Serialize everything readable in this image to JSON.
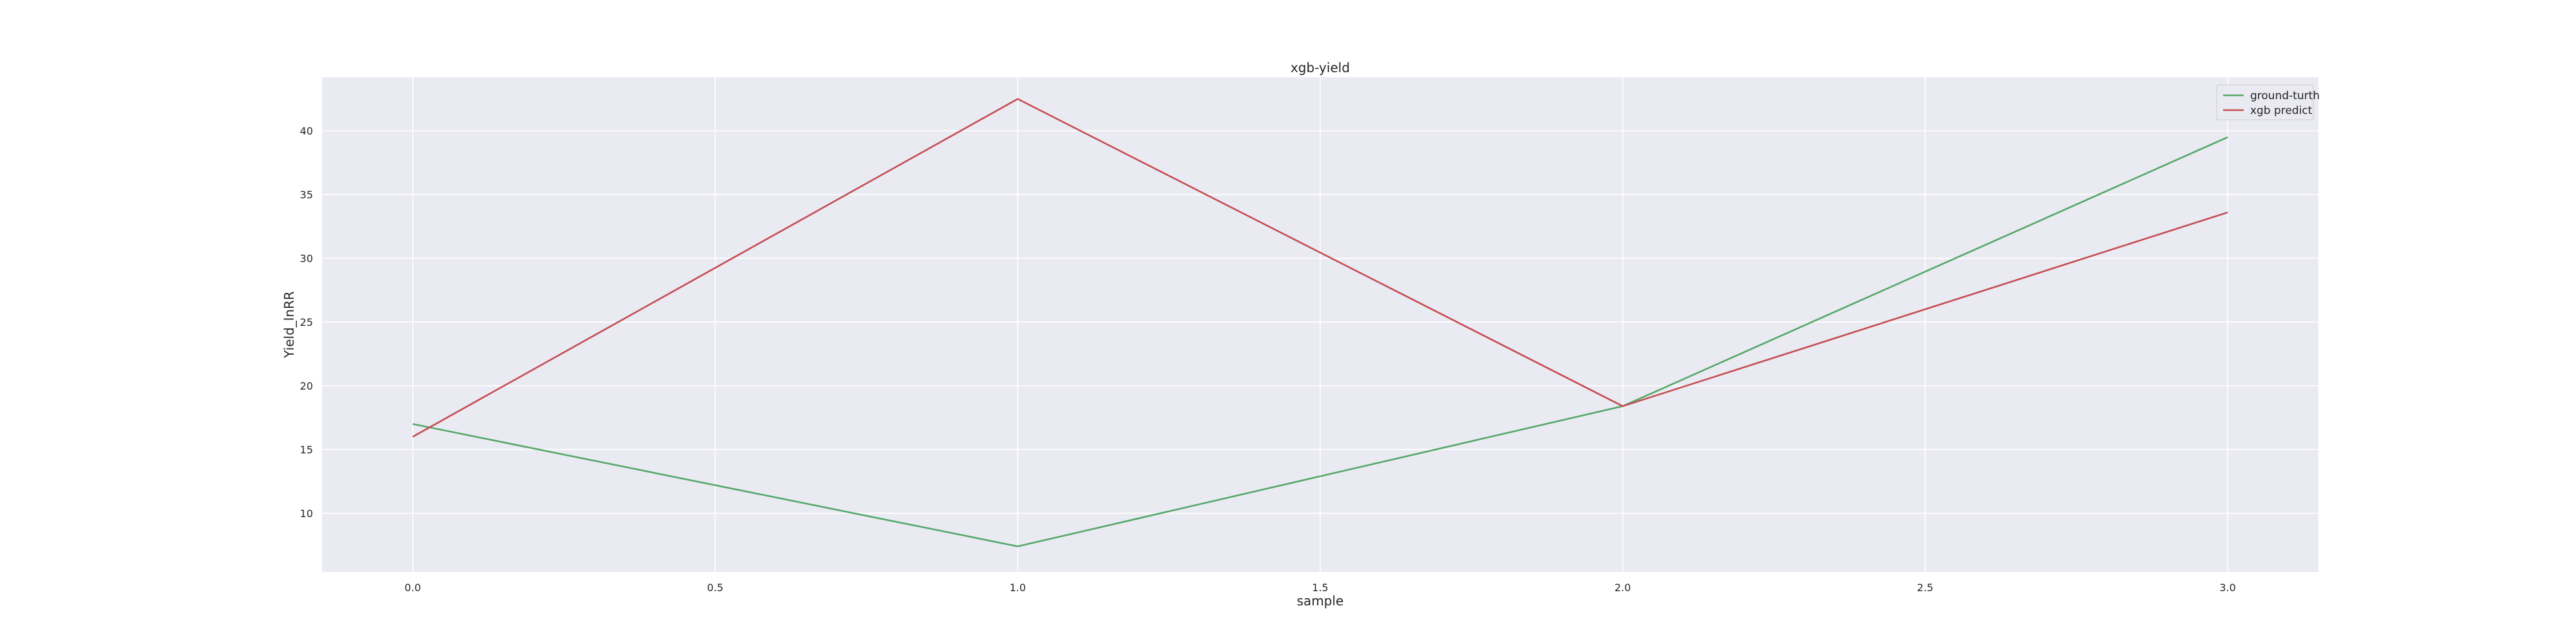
{
  "chart_data": {
    "type": "line",
    "title": "xgb-yield",
    "xlabel": "sample",
    "ylabel": "Yield_lnRR",
    "x": [
      0,
      1,
      2,
      3
    ],
    "xticks": [
      0.0,
      0.5,
      1.0,
      1.5,
      2.0,
      2.5,
      3.0
    ],
    "xtick_labels": [
      "0.0",
      "0.5",
      "1.0",
      "1.5",
      "2.0",
      "2.5",
      "3.0"
    ],
    "yticks": [
      10,
      15,
      20,
      25,
      30,
      35,
      40
    ],
    "ytick_labels": [
      "10",
      "15",
      "20",
      "25",
      "30",
      "35",
      "40"
    ],
    "xlim": [
      -0.15,
      3.15
    ],
    "ylim": [
      5.4,
      44.2
    ],
    "grid": true,
    "legend_position": "top-right",
    "series": [
      {
        "name": "ground-turth",
        "color": "#55a868",
        "values": [
          17.0,
          7.4,
          18.4,
          39.5
        ]
      },
      {
        "name": "xgb predict",
        "color": "#c44e52",
        "values": [
          16.0,
          42.5,
          18.4,
          33.6
        ]
      }
    ],
    "colors": {
      "plot_background": "#eaeaf2",
      "grid": "#ffffff",
      "text": "#262626"
    }
  }
}
